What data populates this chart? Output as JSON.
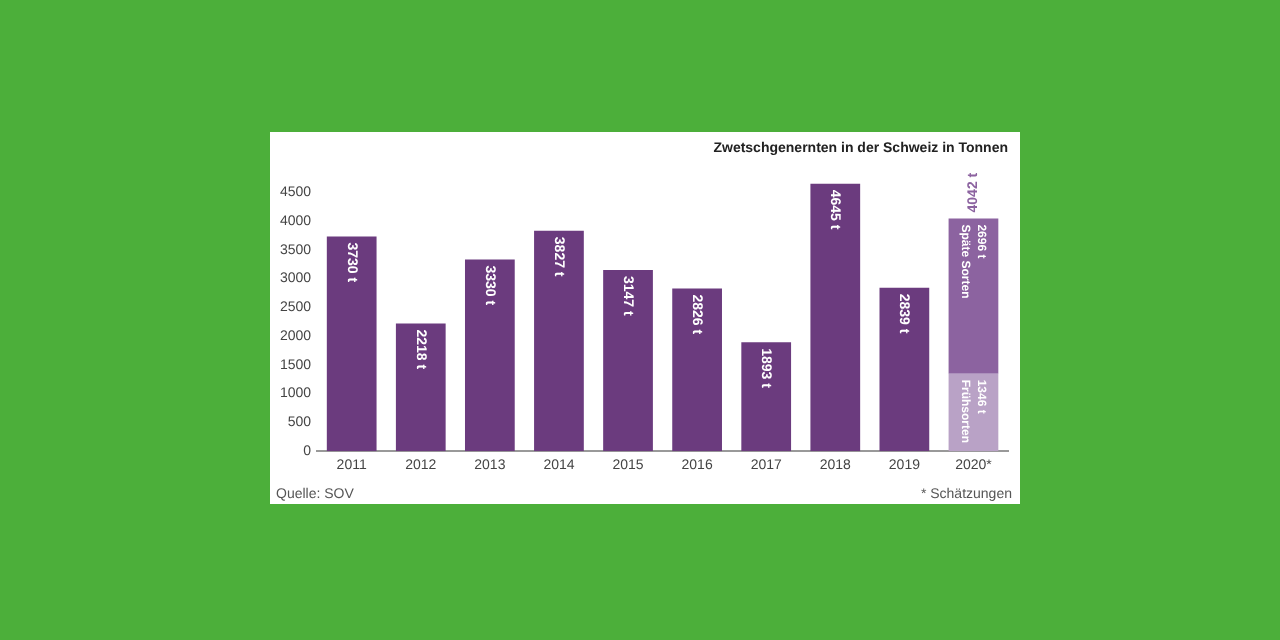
{
  "chart_data": {
    "type": "bar",
    "title": "Zwetschgenernten in der Schweiz in Tonnen",
    "stacked": true,
    "categories": [
      "2011",
      "2012",
      "2013",
      "2014",
      "2015",
      "2016",
      "2017",
      "2018",
      "2019",
      "2020*"
    ],
    "series": [
      {
        "color": "#6b3b7e",
        "values": [
          3730,
          2218,
          3330,
          3827,
          3147,
          2826,
          1893,
          4645,
          2839,
          null
        ],
        "value_labels": [
          "3730 t",
          "2218 t",
          "3330 t",
          "3827 t",
          "3147 t",
          "2826 t",
          "1893 t",
          "4645 t",
          "2839 t",
          null
        ]
      },
      {
        "name": "Frühsorten",
        "color": "#b9a2c6",
        "values": [
          null,
          null,
          null,
          null,
          null,
          null,
          null,
          null,
          null,
          1346
        ],
        "value_labels": [
          null,
          null,
          null,
          null,
          null,
          null,
          null,
          null,
          null,
          "1346 t"
        ]
      },
      {
        "name": "Späte Sorten",
        "color": "#8c63a0",
        "values": [
          null,
          null,
          null,
          null,
          null,
          null,
          null,
          null,
          null,
          2696
        ],
        "value_labels": [
          null,
          null,
          null,
          null,
          null,
          null,
          null,
          null,
          null,
          "2696 t"
        ]
      }
    ],
    "totals": [
      null,
      null,
      null,
      null,
      null,
      null,
      null,
      null,
      null,
      "4042 t"
    ],
    "ylim": [
      0,
      4800
    ],
    "yticks": [
      0,
      500,
      1000,
      1500,
      2000,
      2500,
      3000,
      3500,
      4000,
      4500
    ],
    "grid": false,
    "legend": false,
    "annotations": [
      "Quelle: SOV",
      "* Schätzungen"
    ]
  }
}
